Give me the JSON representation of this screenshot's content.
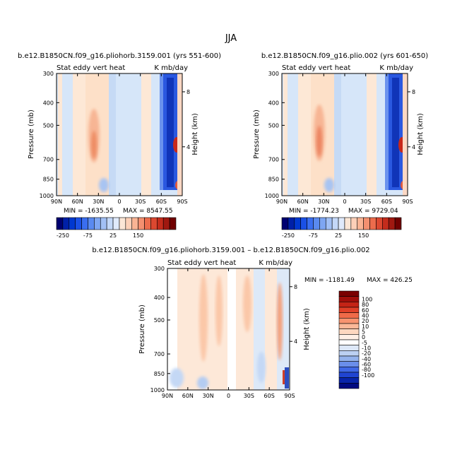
{
  "figure": {
    "title": "JJA"
  },
  "chart_data": [
    {
      "type": "heatmap",
      "title": "b.e12.B1850CN.f09_g16.pliohorb.3159.001 (yrs 551-600)",
      "subtitle_left": "Stat eddy vert heat",
      "subtitle_right": "K mb/day",
      "xlabel": "",
      "ylabel": "Pressure (mb)",
      "ylabel_right": "Height (km)",
      "x_ticks": [
        "90N",
        "60N",
        "30N",
        "0",
        "30S",
        "60S",
        "90S"
      ],
      "y_ticks": [
        "300",
        "400",
        "500",
        "700",
        "850",
        "1000"
      ],
      "y_ticks_right": [
        "8",
        "4"
      ],
      "ylim": [
        1000,
        300
      ],
      "y_scale": "log",
      "min_label": "MIN = -1635.55",
      "max_label": "MAX = 8547.55",
      "colorbar": {
        "orientation": "horizontal",
        "colors": [
          "#000070",
          "#0020a8",
          "#0038d0",
          "#1a50e6",
          "#3a6ef0",
          "#5a8af0",
          "#7ea6f2",
          "#a2c0f5",
          "#c4d8f8",
          "#e0eafb",
          "#fbe6d6",
          "#fcd0b8",
          "#fab494",
          "#f49070",
          "#ec6c4c",
          "#dc4830",
          "#c42c1c",
          "#a01810",
          "#700000"
        ],
        "tick_labels": [
          "-250",
          "-75",
          "25",
          "150"
        ]
      }
    },
    {
      "type": "heatmap",
      "title": "b.e12.B1850CN.f09_g16.plio.002 (yrs 601-650)",
      "subtitle_left": "Stat eddy vert heat",
      "subtitle_right": "K mb/day",
      "xlabel": "",
      "ylabel": "Pressure (mb)",
      "ylabel_right": "Height (km)",
      "x_ticks": [
        "90N",
        "60N",
        "30N",
        "0",
        "30S",
        "60S",
        "90S"
      ],
      "y_ticks": [
        "300",
        "400",
        "500",
        "700",
        "850",
        "1000"
      ],
      "y_ticks_right": [
        "8",
        "4"
      ],
      "ylim": [
        1000,
        300
      ],
      "y_scale": "log",
      "min_label": "MIN = -1774.23",
      "max_label": "MAX = 9729.04",
      "colorbar": {
        "orientation": "horizontal",
        "colors": [
          "#000070",
          "#0020a8",
          "#0038d0",
          "#1a50e6",
          "#3a6ef0",
          "#5a8af0",
          "#7ea6f2",
          "#a2c0f5",
          "#c4d8f8",
          "#e0eafb",
          "#fbe6d6",
          "#fcd0b8",
          "#fab494",
          "#f49070",
          "#ec6c4c",
          "#dc4830",
          "#c42c1c",
          "#a01810",
          "#700000"
        ],
        "tick_labels": [
          "-250",
          "-75",
          "25",
          "150"
        ]
      }
    },
    {
      "type": "heatmap",
      "title": "b.e12.B1850CN.f09_g16.pliohorb.3159.001 – b.e12.B1850CN.f09_g16.plio.002",
      "subtitle_left": "Stat eddy vert heat",
      "subtitle_right": "K mb/day",
      "xlabel": "",
      "ylabel": "Pressure (mb)",
      "ylabel_right": "Height (km)",
      "x_ticks": [
        "90N",
        "60N",
        "30N",
        "0",
        "30S",
        "60S",
        "90S"
      ],
      "y_ticks": [
        "300",
        "400",
        "500",
        "700",
        "850",
        "1000"
      ],
      "y_ticks_right": [
        "8",
        "4"
      ],
      "ylim": [
        1000,
        300
      ],
      "y_scale": "log",
      "min_label": "MIN = -1181.49",
      "max_label": "MAX = 426.25",
      "colorbar": {
        "orientation": "vertical",
        "colors": [
          "#7a0000",
          "#a00e0a",
          "#c42416",
          "#e04028",
          "#f06a48",
          "#f89470",
          "#fbb898",
          "#fdd8c0",
          "#fef0e6",
          "#ffffff",
          "#dde8f8",
          "#bcd0f2",
          "#94b2ec",
          "#6a8eea",
          "#4068e6",
          "#2044d2",
          "#0824aa",
          "#000a80"
        ],
        "tick_labels": [
          "100",
          "80",
          "60",
          "40",
          "20",
          "10",
          "5",
          "0",
          "-5",
          "-10",
          "-20",
          "-40",
          "-60",
          "-80",
          "-100"
        ]
      }
    }
  ]
}
